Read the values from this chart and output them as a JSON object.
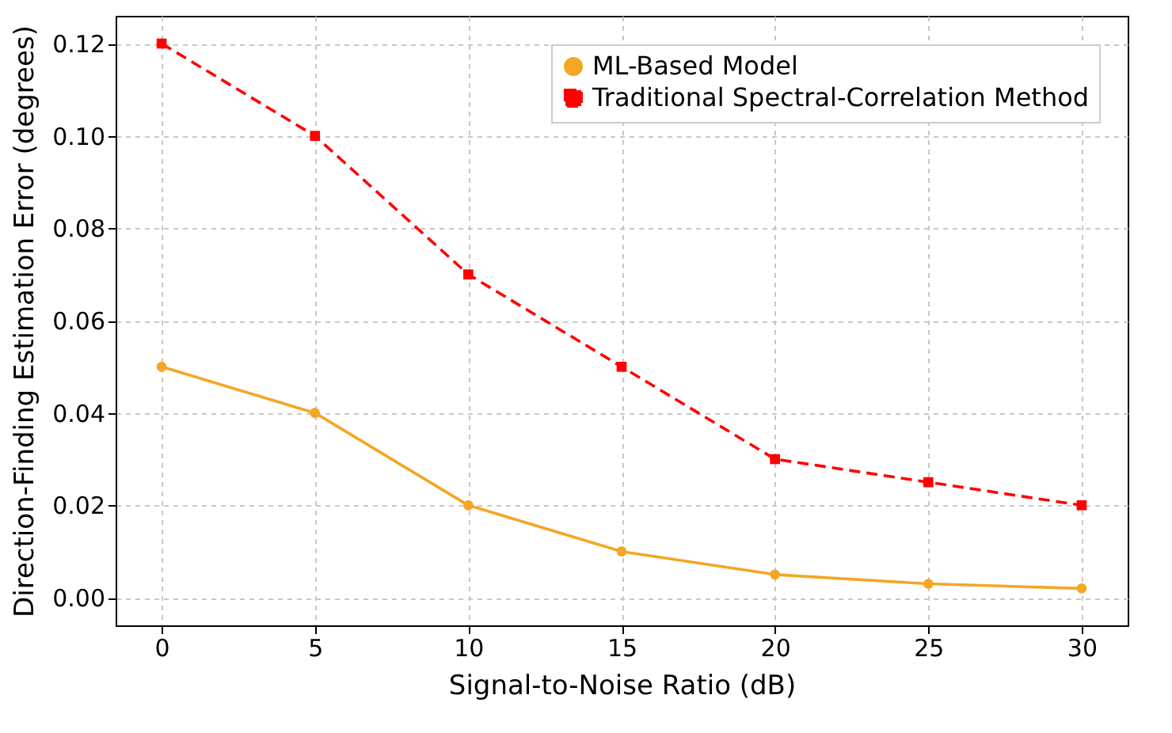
{
  "chart_data": {
    "type": "line",
    "xlabel": "Signal-to-Noise Ratio (dB)",
    "ylabel": "Direction-Finding Estimation Error (degrees)",
    "x": [
      0,
      5,
      10,
      15,
      20,
      25,
      30
    ],
    "series": [
      {
        "name": "ML-Based Model",
        "color": "#f5a623",
        "marker": "circle",
        "line_style": "solid",
        "values": [
          0.05,
          0.04,
          0.02,
          0.01,
          0.005,
          0.003,
          0.002
        ]
      },
      {
        "name": "Traditional Spectral-Correlation Method",
        "color": "#ff0000",
        "marker": "square",
        "line_style": "dashed",
        "values": [
          0.12,
          0.1,
          0.07,
          0.05,
          0.03,
          0.025,
          0.02
        ]
      }
    ],
    "xlim": [
      -1.5,
      31.5
    ],
    "ylim": [
      -0.006,
      0.126
    ],
    "xticks": [
      0,
      5,
      10,
      15,
      20,
      25,
      30
    ],
    "yticks": [
      {
        "value": 0,
        "label": "0.00"
      },
      {
        "value": 0.02,
        "label": "0.02"
      },
      {
        "value": 0.04,
        "label": "0.04"
      },
      {
        "value": 0.06,
        "label": "0.06"
      },
      {
        "value": 0.08,
        "label": "0.08"
      },
      {
        "value": 0.1,
        "label": "0.10"
      },
      {
        "value": 0.12,
        "label": "0.12"
      }
    ],
    "grid": true,
    "legend": "top right"
  }
}
